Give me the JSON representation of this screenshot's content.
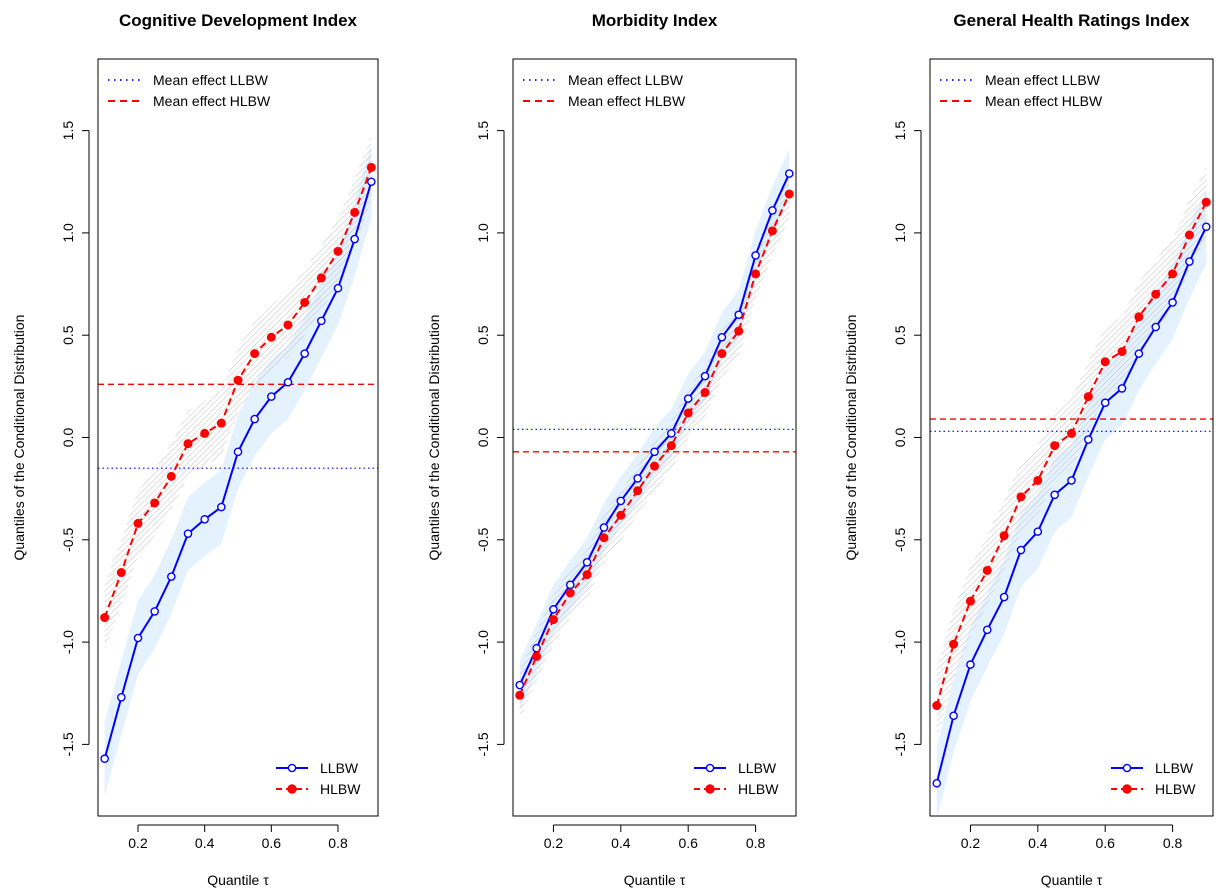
{
  "colors": {
    "llbw": "#0000ff",
    "hlbw": "#ff0000",
    "band_llbw": "#ddeeff",
    "band_hlbw": "#bbbbbb"
  },
  "chart_data": [
    {
      "type": "line",
      "title": "Cognitive Development Index",
      "xlabel": "Quantile τ",
      "ylabel": "Quantiles of the Conditional Distribution",
      "xlim": [
        0.08,
        0.92
      ],
      "ylim": [
        -1.85,
        1.85
      ],
      "xticks": [
        "0.2",
        "0.4",
        "0.6",
        "0.8"
      ],
      "yticks": [
        "-1.5",
        "-1.0",
        "-0.5",
        "0.0",
        "0.5",
        "1.0",
        "1.5"
      ],
      "x": [
        0.1,
        0.15,
        0.2,
        0.25,
        0.3,
        0.35,
        0.4,
        0.45,
        0.5,
        0.55,
        0.6,
        0.65,
        0.7,
        0.75,
        0.8,
        0.85,
        0.9
      ],
      "series": [
        {
          "name": "LLBW",
          "values": [
            -1.57,
            -1.27,
            -0.98,
            -0.85,
            -0.68,
            -0.47,
            -0.4,
            -0.34,
            -0.07,
            0.09,
            0.2,
            0.27,
            0.41,
            0.57,
            0.73,
            0.97,
            1.25
          ],
          "band": 0.18
        },
        {
          "name": "HLBW",
          "values": [
            -0.88,
            -0.66,
            -0.42,
            -0.32,
            -0.19,
            -0.03,
            0.02,
            0.07,
            0.28,
            0.41,
            0.49,
            0.55,
            0.66,
            0.78,
            0.91,
            1.1,
            1.32
          ],
          "band": 0.16
        }
      ],
      "mean_effects": [
        {
          "name": "Mean effect LLBW",
          "value": -0.15
        },
        {
          "name": "Mean effect HLBW",
          "value": 0.26
        }
      ],
      "legend_top": [
        "Mean effect LLBW",
        "Mean effect HLBW"
      ],
      "legend_bottom": [
        "LLBW",
        "HLBW"
      ]
    },
    {
      "type": "line",
      "title": "Morbidity Index",
      "xlabel": "Quantile τ",
      "ylabel": "Quantiles of the Conditional Distribution",
      "xlim": [
        0.08,
        0.92
      ],
      "ylim": [
        -1.85,
        1.85
      ],
      "xticks": [
        "0.2",
        "0.4",
        "0.6",
        "0.8"
      ],
      "yticks": [
        "-1.5",
        "-1.0",
        "-0.5",
        "0.0",
        "0.5",
        "1.0",
        "1.5"
      ],
      "x": [
        0.1,
        0.15,
        0.2,
        0.25,
        0.3,
        0.35,
        0.4,
        0.45,
        0.5,
        0.55,
        0.6,
        0.65,
        0.7,
        0.75,
        0.8,
        0.85,
        0.9
      ],
      "series": [
        {
          "name": "LLBW",
          "values": [
            -1.21,
            -1.03,
            -0.84,
            -0.72,
            -0.61,
            -0.44,
            -0.31,
            -0.2,
            -0.07,
            0.02,
            0.19,
            0.3,
            0.49,
            0.6,
            0.89,
            1.11,
            1.29
          ],
          "band": 0.12
        },
        {
          "name": "HLBW",
          "values": [
            -1.26,
            -1.07,
            -0.89,
            -0.76,
            -0.67,
            -0.49,
            -0.38,
            -0.26,
            -0.14,
            -0.04,
            0.12,
            0.22,
            0.41,
            0.52,
            0.8,
            1.01,
            1.19
          ],
          "band": 0.12
        }
      ],
      "mean_effects": [
        {
          "name": "Mean effect LLBW",
          "value": 0.04
        },
        {
          "name": "Mean effect HLBW",
          "value": -0.07
        }
      ],
      "legend_top": [
        "Mean effect LLBW",
        "Mean effect HLBW"
      ],
      "legend_bottom": [
        "LLBW",
        "HLBW"
      ]
    },
    {
      "type": "line",
      "title": "General Health Ratings Index",
      "xlabel": "Quantile τ",
      "ylabel": "Quantiles of the Conditional Distribution",
      "xlim": [
        0.08,
        0.92
      ],
      "ylim": [
        -1.85,
        1.85
      ],
      "xticks": [
        "0.2",
        "0.4",
        "0.6",
        "0.8"
      ],
      "yticks": [
        "-1.5",
        "-1.0",
        "-0.5",
        "0.0",
        "0.5",
        "1.0",
        "1.5"
      ],
      "x": [
        0.1,
        0.15,
        0.2,
        0.25,
        0.3,
        0.35,
        0.4,
        0.45,
        0.5,
        0.55,
        0.6,
        0.65,
        0.7,
        0.75,
        0.8,
        0.85,
        0.9
      ],
      "series": [
        {
          "name": "LLBW",
          "values": [
            -1.69,
            -1.36,
            -1.11,
            -0.94,
            -0.78,
            -0.55,
            -0.46,
            -0.28,
            -0.21,
            -0.01,
            0.17,
            0.24,
            0.41,
            0.54,
            0.66,
            0.86,
            1.03
          ],
          "band": 0.18
        },
        {
          "name": "HLBW",
          "values": [
            -1.31,
            -1.01,
            -0.8,
            -0.65,
            -0.48,
            -0.29,
            -0.21,
            -0.04,
            0.02,
            0.2,
            0.37,
            0.42,
            0.59,
            0.7,
            0.8,
            0.99,
            1.15
          ],
          "band": 0.17
        }
      ],
      "mean_effects": [
        {
          "name": "Mean effect LLBW",
          "value": 0.03
        },
        {
          "name": "Mean effect HLBW",
          "value": 0.09
        }
      ],
      "legend_top": [
        "Mean effect LLBW",
        "Mean effect HLBW"
      ],
      "legend_bottom": [
        "LLBW",
        "HLBW"
      ]
    }
  ]
}
